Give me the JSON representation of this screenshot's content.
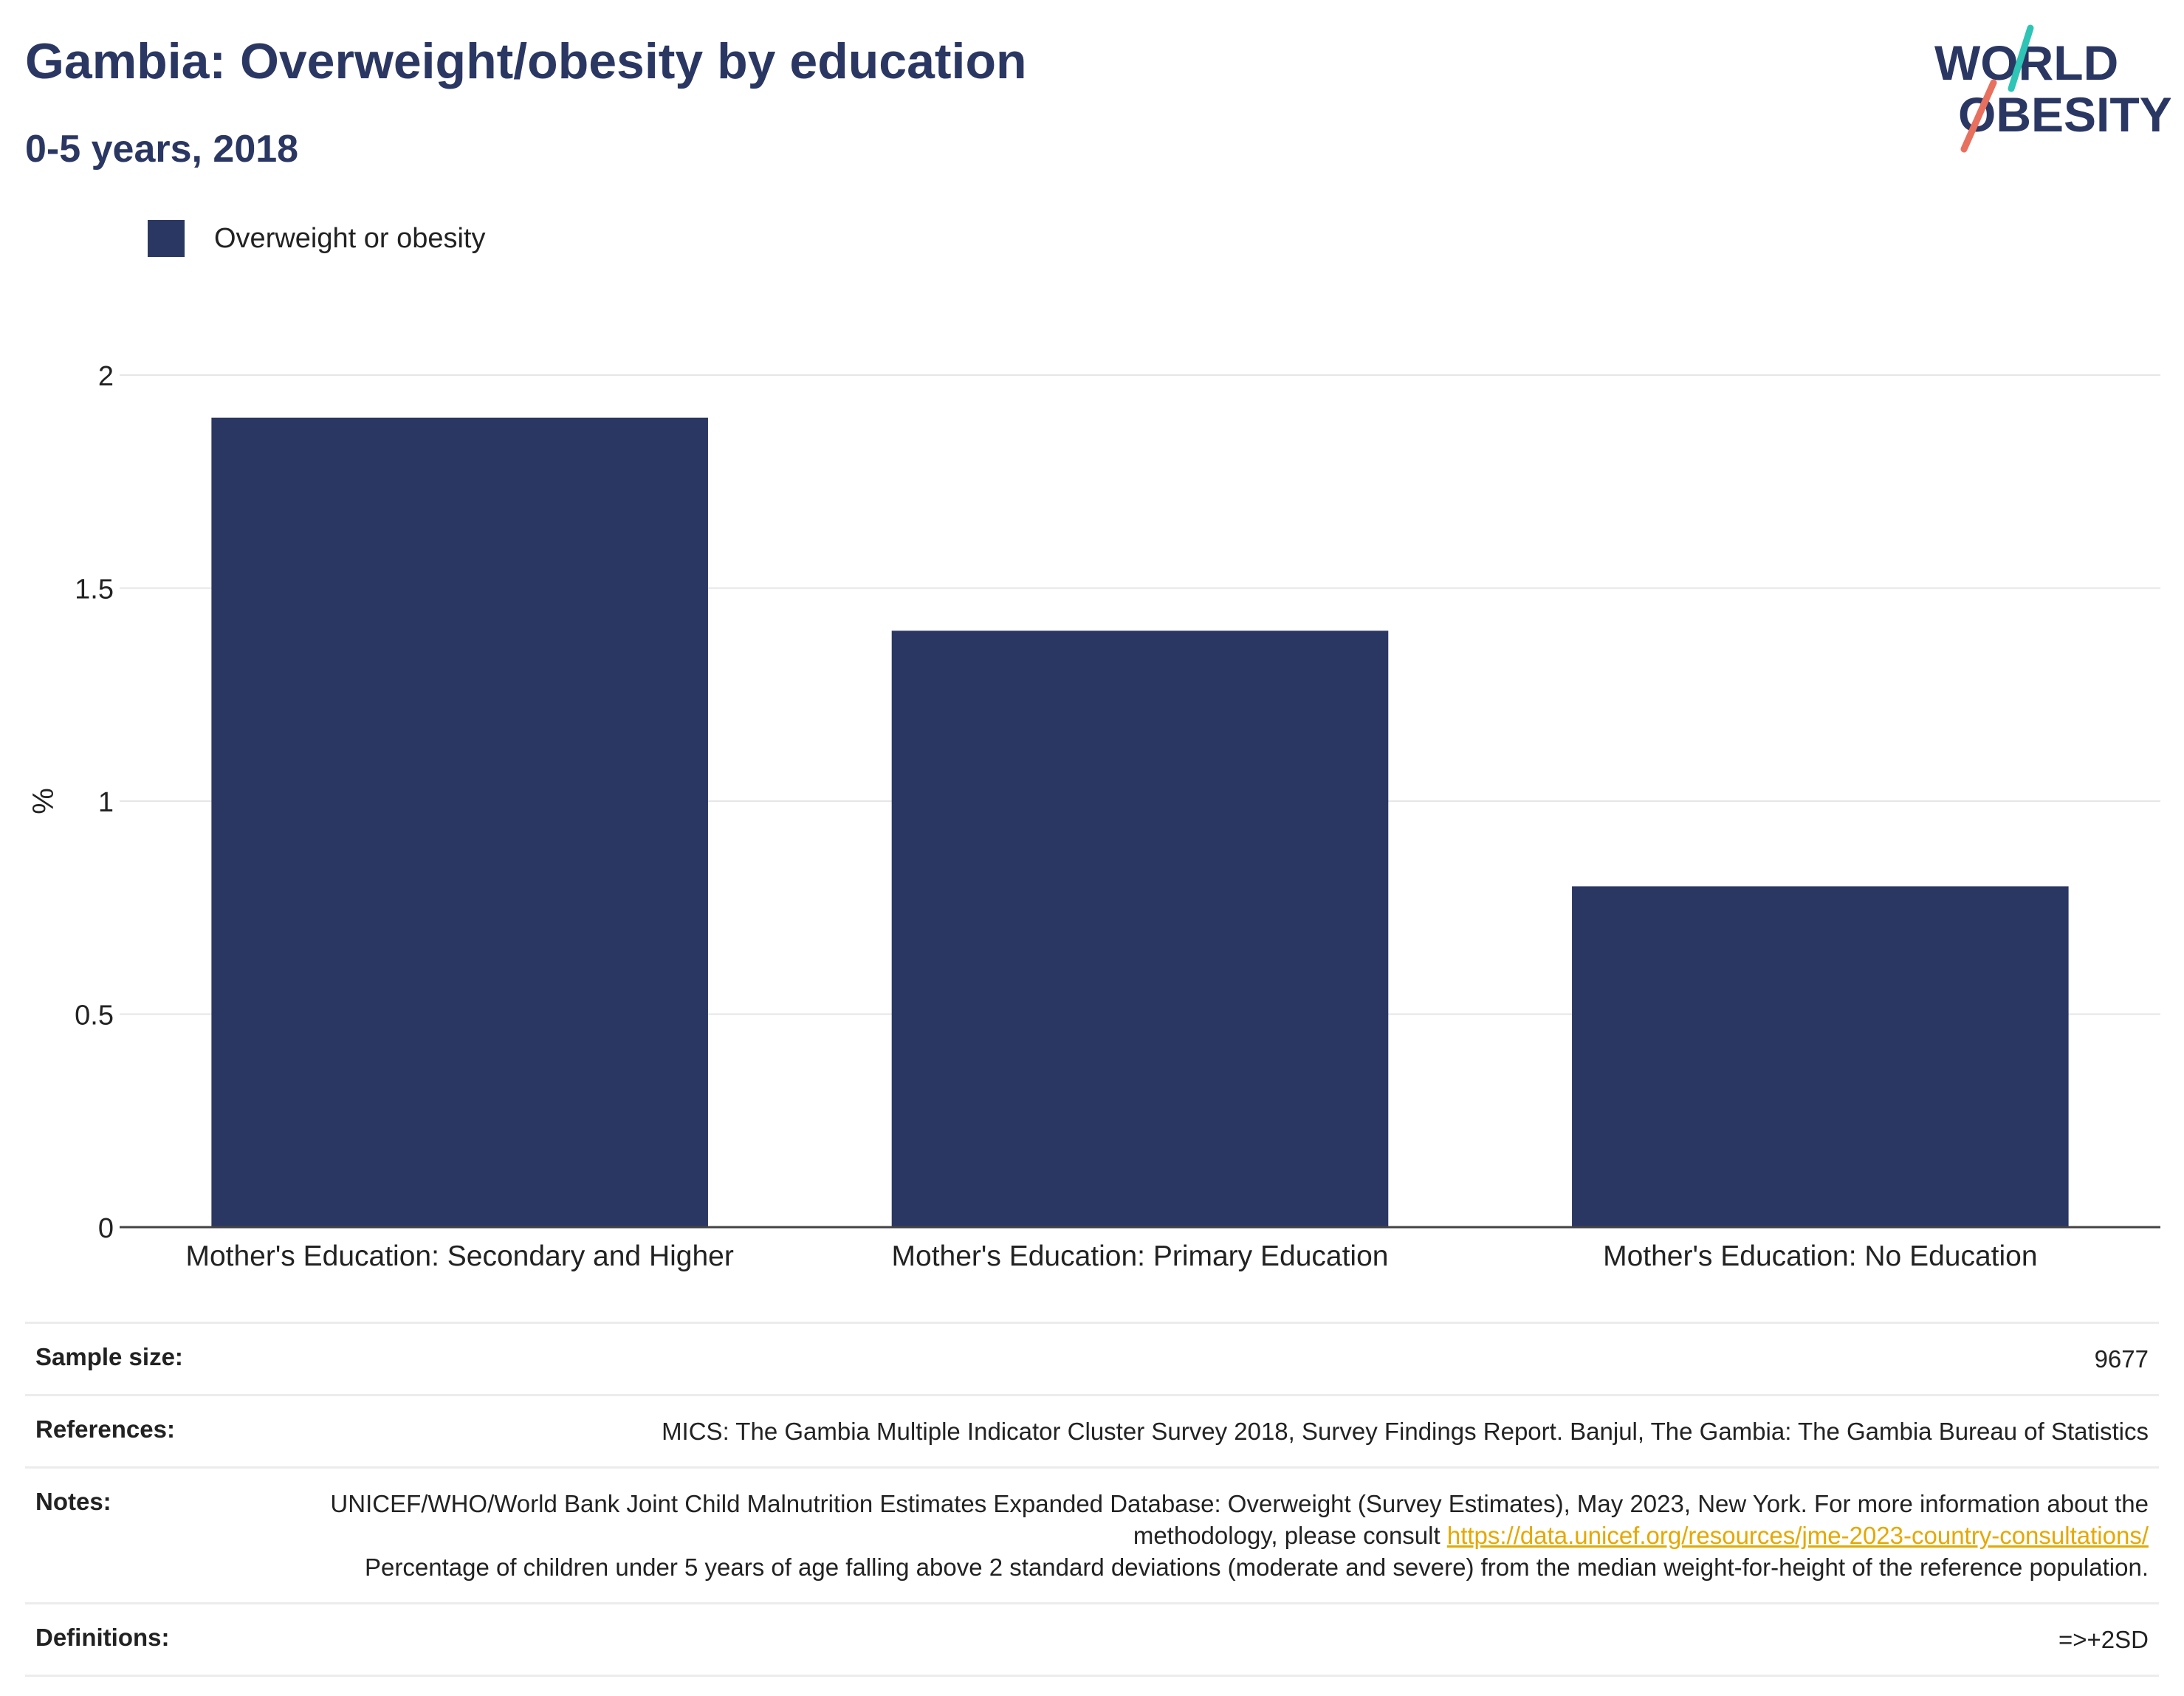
{
  "header": {
    "title": "Gambia: Overweight/obesity by education",
    "subtitle": "0-5 years, 2018"
  },
  "logo": {
    "line1": "WORLD",
    "line2": "OBESITY",
    "accent_teal": "#2ec4b6",
    "accent_coral": "#e8705f"
  },
  "colors": {
    "bar": "#2b3763",
    "text_dark": "#2b3763",
    "link": "#e6a800"
  },
  "legend": {
    "label": "Overweight or obesity"
  },
  "chart_data": {
    "type": "bar",
    "categories": [
      "Mother's Education: Secondary and Higher",
      "Mother's Education: Primary Education",
      "Mother's Education: No Education"
    ],
    "series": [
      {
        "name": "Overweight or obesity",
        "values": [
          1.9,
          1.4,
          0.8
        ]
      }
    ],
    "ylabel": "%",
    "ylim": [
      0,
      2
    ],
    "yticks": [
      "0",
      "0.5",
      "1",
      "1.5",
      "2"
    ],
    "grid": true,
    "legend_position": "top-left"
  },
  "meta": {
    "sample_size_label": "Sample size:",
    "sample_size_value": "9677",
    "references_label": "References:",
    "references_value": "MICS: The Gambia Multiple Indicator Cluster Survey 2018, Survey Findings Report. Banjul, The Gambia: The Gambia Bureau of Statistics",
    "notes_label": "Notes:",
    "notes_text_1": "UNICEF/WHO/World Bank Joint Child Malnutrition Estimates Expanded Database: Overweight (Survey Estimates), May 2023, New York. For more information about the methodology, please consult",
    "notes_link": "https://data.unicef.org/resources/jme-2023-country-consultations/",
    "notes_text_2": "Percentage of children under 5 years of age falling above 2 standard deviations (moderate and severe) from the median weight-for-height of the reference population.",
    "definitions_label": "Definitions:",
    "definitions_value": "=>+2SD"
  }
}
